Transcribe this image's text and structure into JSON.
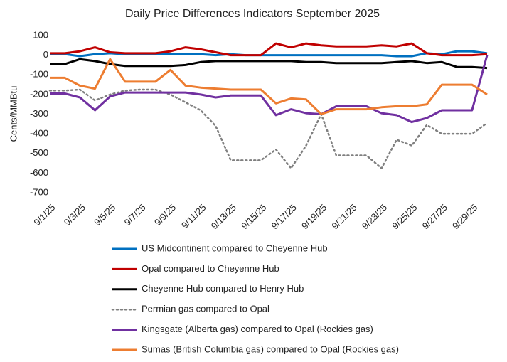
{
  "chart_data": {
    "type": "line",
    "title": "Daily Price Differences Indicators September 2025",
    "y_label": "Cents/MMBtu",
    "categories": [
      "9/1/25",
      null,
      "9/3/25",
      null,
      "9/5/25",
      null,
      "9/7/25",
      null,
      "9/9/25",
      null,
      "9/11/25",
      null,
      "9/13/25",
      null,
      "9/15/25",
      null,
      "9/17/25",
      null,
      "9/19/25",
      null,
      "9/21/25",
      null,
      "9/23/25",
      null,
      "9/25/25",
      null,
      "9/27/25",
      null,
      "9/29/25",
      null
    ],
    "ylim": [
      -700,
      100
    ],
    "yticks": [
      -700,
      -600,
      -500,
      -400,
      -300,
      -200,
      -100,
      0,
      100
    ],
    "grid": false,
    "series": [
      {
        "name": "US Midcontinent compared to Cheyenne Hub",
        "color": "#0070c0",
        "dash": "solid",
        "values": [
          5,
          5,
          -5,
          5,
          10,
          5,
          5,
          5,
          5,
          5,
          5,
          0,
          5,
          0,
          0,
          0,
          0,
          0,
          0,
          0,
          0,
          0,
          0,
          -5,
          -5,
          10,
          5,
          20,
          20,
          10
        ]
      },
      {
        "name": "Opal compared to Cheyenne Hub",
        "color": "#c00000",
        "dash": "solid",
        "values": [
          10,
          10,
          20,
          40,
          15,
          10,
          10,
          10,
          20,
          40,
          30,
          15,
          0,
          0,
          0,
          60,
          40,
          60,
          50,
          45,
          45,
          45,
          50,
          45,
          60,
          10,
          0,
          0,
          0,
          5
        ]
      },
      {
        "name": "Cheyenne Hub compared to Henry Hub",
        "color": "#000000",
        "dash": "solid",
        "values": [
          -45,
          -45,
          -20,
          -30,
          -45,
          -55,
          -55,
          -55,
          -55,
          -50,
          -35,
          -30,
          -30,
          -30,
          -30,
          -30,
          -30,
          -35,
          -35,
          -40,
          -40,
          -40,
          -40,
          -35,
          -30,
          -40,
          -35,
          -60,
          -60,
          -65
        ]
      },
      {
        "name": "Permian gas compared to Opal",
        "color": "#7f7f7f",
        "dash": "dotted",
        "values": [
          -180,
          -180,
          -175,
          -230,
          -200,
          -180,
          -175,
          -175,
          -200,
          -240,
          -280,
          -360,
          -535,
          -535,
          -535,
          -480,
          -575,
          -460,
          -300,
          -510,
          -510,
          -510,
          -575,
          -430,
          -460,
          -355,
          -400,
          -400,
          -400,
          -345
        ]
      },
      {
        "name": "Kingsgate (Alberta gas) compared to Opal (Rockies gas)",
        "color": "#7030a0",
        "dash": "solid",
        "values": [
          -195,
          -195,
          -215,
          -280,
          -210,
          -190,
          -190,
          -190,
          -190,
          -190,
          -200,
          -215,
          -205,
          -205,
          -205,
          -305,
          -275,
          -295,
          -300,
          -260,
          -260,
          -260,
          -295,
          -305,
          -340,
          -320,
          -280,
          -280,
          -280,
          0
        ]
      },
      {
        "name": "Sumas (British Columbia gas) compared to Opal (Rockies gas)",
        "color": "#ed7d31",
        "dash": "solid",
        "values": [
          -115,
          -115,
          -155,
          -170,
          -20,
          -135,
          -135,
          -135,
          -75,
          -155,
          -165,
          -170,
          -175,
          -175,
          -175,
          -245,
          -220,
          -225,
          -300,
          -275,
          -275,
          -275,
          -265,
          -260,
          -260,
          -250,
          -150,
          -150,
          -150,
          -200
        ]
      }
    ]
  }
}
